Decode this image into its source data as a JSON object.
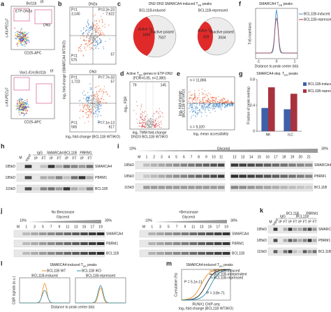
{
  "a": {
    "letter": "a",
    "g1": "Bcl11b",
    "s1": "f/f",
    "gate1": "ETP-DN2a",
    "gate2": "DN3",
    "y1": "c-Kit-PECy7",
    "x1": "CD25-APC",
    "g2": "Vav1-iCre;Bcl11b",
    "s2": "f/f",
    "y2": "c-Kit-PECy7",
    "x2": "CD25-APC"
  },
  "b": {
    "letter": "b",
    "t1": "DN2a",
    "tl1": "P=1",
    "tl1n": "3,140",
    "tr1": "P=3.2e-23",
    "tr1n": "7,622",
    "br1": "57",
    "bl1": "P=1",
    "bl1n": "575",
    "t2": "DN3",
    "tl2": "P=1",
    "tl2n": "1,723",
    "tr2": "P=7.7e-33",
    "br2": "57",
    "bl2": "P=1",
    "bl2n": "565",
    "br2p": "P=7.1e-13",
    "br2n": "617",
    "ylab": "log₂ fold-change (SMARCA4 WT/iKO)",
    "xlab": "log₂ fold-change (BCL11B WT/iKO)"
  },
  "c": {
    "letter": "c",
    "title": "DN2-DN3 SMARCA4-induced T",
    "title_sub": "ER",
    "title_end": " peaks",
    "left": "BCL11B-induced",
    "right": "BCL11B-repressed",
    "active1": "Active Tx",
    "active1n": "1669",
    "inactive1": "Inactive poised",
    "inactive1n": "7507",
    "active2": "Active Tx",
    "active2n": "529",
    "inactive2": "Inactive poised",
    "inactive2n": "3934"
  },
  "d": {
    "letter": "d",
    "title": "Active T",
    "title_sub": "ER",
    "title_end": " genes in ETP-DN3",
    "subtitle": "(FDR<0.05, n=2,380)",
    "left_n": "79",
    "right_n": "145",
    "ylab": "-log₁₀ FDR",
    "xlab1": "log₂ TMM fold-change",
    "xlab2": "DN2/3 BCL11B WT/iKO"
  },
  "e": {
    "letter": "e",
    "n_top": "n = 11,866",
    "n_bottom": "n = 9,320",
    "ylab1": "log₂ fold-change",
    "ylab2": "(BCL11B WT/iKO)",
    "xlab": "log₂ mean accessibility"
  },
  "f": {
    "letter": "f",
    "title": "SMARCA4 T",
    "title_sub": "ER",
    "title_end": " peaks",
    "leg1": "BCL11B-induced",
    "leg2": "BCL11B-repressed",
    "ylab": "Tn5 insertions",
    "xlab": "Distance to peak center (kb)",
    "xt": [
      "-1",
      "0",
      "1"
    ]
  },
  "g": {
    "letter": "g",
    "title": "SMARCA4-dep. T",
    "title_sub": "ER",
    "title_end": " peaks",
    "ylab": "Fraction of peak overlap",
    "categories": [
      "NK",
      "ILC"
    ],
    "series": [
      {
        "name": "BCL11B-induced",
        "color": "#3f5fa8",
        "values": [
          0.36,
          0.34
        ]
      },
      {
        "name": "BCL11B-repressed",
        "color": "#a8323e",
        "values": [
          0.68,
          0.58
        ]
      }
    ],
    "ylim": [
      0,
      0.8
    ],
    "yticks": [
      0,
      0.4,
      0.8
    ]
  },
  "h": {
    "letter": "h",
    "lanes": [
      "M",
      "Input",
      "IgG",
      "SMARCA4",
      "BCL11B",
      "PBRM1"
    ],
    "ipft": [
      "IP",
      "FT",
      "IP",
      "FT",
      "IP",
      "FT",
      "IP",
      "FT"
    ],
    "mw": [
      "185kD",
      "185kD",
      "115kD"
    ],
    "prot": [
      "SMARCA4",
      "PBRM1",
      "BCL11B"
    ]
  },
  "i": {
    "letter": "i",
    "lo": "10%",
    "mid": "Glycerol",
    "hi": "30%",
    "f1": [
      "M",
      "1",
      "2",
      "3",
      "4",
      "5",
      "6",
      "7",
      "8",
      "9",
      "10",
      "11"
    ],
    "f2": [
      "12",
      "13",
      "14",
      "15",
      "16",
      "17",
      "18",
      "19",
      "20",
      "21"
    ],
    "mw": [
      "185kD",
      "185kD",
      "115kD"
    ],
    "prot": [
      "SMARCA4",
      "PBRM1",
      "BCL11B"
    ]
  },
  "j": {
    "letter": "j",
    "t1": "No Benzonase",
    "t2": "+Benzonase",
    "mid": "Glycerol",
    "lo": "10%",
    "hi": "30%",
    "fr": [
      "M",
      "1",
      "3",
      "5",
      "7",
      "9",
      "11",
      "13",
      "15",
      "17",
      "19"
    ],
    "prot": [
      "SMARCA4",
      "PBRM1",
      "BCL11B"
    ]
  },
  "k": {
    "letter": "k",
    "lanes": [
      "M",
      "Input",
      "IgG",
      "BCL11B",
      "BCL11B",
      "PBRM1"
    ],
    "ipft": [
      "IP",
      "FT",
      "IP",
      "FT",
      "IP",
      "FT",
      "IP",
      "FT"
    ],
    "mw": [
      "185kD",
      "185kD",
      "115kD"
    ],
    "prot": [
      "SMARCA4",
      "PBRM1",
      "BCL11B"
    ]
  },
  "l": {
    "letter": "l",
    "title": "SMARCA4-induced T",
    "title_sub": "ER",
    "title_end": " peaks",
    "p1": "BCL11B-induced",
    "p2": "BCL11B-repressed",
    "leg1": "BCL11B WT",
    "leg2": "BCL11B iKO",
    "ylab": "C&R signals (a.u.)",
    "xlab": "Distance to peak center (kb)"
  },
  "m": {
    "letter": "m",
    "title": "SMARCA4-induced T",
    "title_sub": "ER",
    "title_end": " peaks",
    "leg1": "BCL11B-induced",
    "leg2": "BCL11B-independent",
    "leg3": "BCL11B-repressed",
    "p1": "P = 5.1e-11",
    "p2": "P = 3.8e-71",
    "ylab": "Cumulative (%)",
    "xlab1": "RUNX1 ChIP-seq",
    "xlab2": "log₂ fold-change (BCL11B WT/iKO)"
  }
}
